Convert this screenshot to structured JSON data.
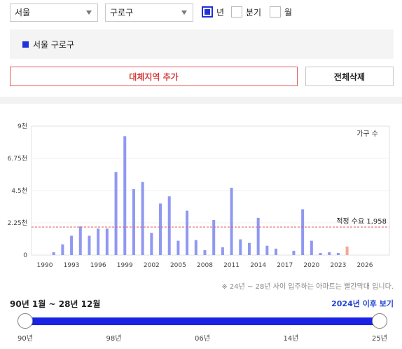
{
  "filters": {
    "city": "서울",
    "district": "구로구",
    "period_options": [
      {
        "label": "년",
        "checked": true
      },
      {
        "label": "분기",
        "checked": false
      },
      {
        "label": "월",
        "checked": false
      }
    ]
  },
  "legend": {
    "label": "서울 구로구",
    "color": "#1f35d8"
  },
  "buttons": {
    "add_region": "대체지역 추가",
    "delete_all": "전체삭제"
  },
  "chart_data": {
    "type": "bar",
    "title": "",
    "xlabel": "",
    "ylabel": "",
    "unit_label": "가구 수",
    "ylim": [
      0,
      9000
    ],
    "y_ticks": [
      "0",
      "2.25천",
      "4.5천",
      "6.75천",
      "9천"
    ],
    "x_ticks": [
      "1990",
      "1993",
      "1996",
      "1999",
      "2002",
      "2005",
      "2008",
      "2011",
      "2014",
      "2017",
      "2020",
      "2023",
      "2026"
    ],
    "reference_line": {
      "label": "적정 수요 1,958",
      "value": 1958,
      "color": "#e05a5a"
    },
    "series": [
      {
        "color": "#8f98f2",
        "points": [
          {
            "x": 1991,
            "y": 200
          },
          {
            "x": 1992,
            "y": 750
          },
          {
            "x": 1993,
            "y": 1350
          },
          {
            "x": 1994,
            "y": 2000
          },
          {
            "x": 1995,
            "y": 1350
          },
          {
            "x": 1996,
            "y": 1850
          },
          {
            "x": 1997,
            "y": 1850
          },
          {
            "x": 1998,
            "y": 5800
          },
          {
            "x": 1999,
            "y": 8300
          },
          {
            "x": 2000,
            "y": 4600
          },
          {
            "x": 2001,
            "y": 5100
          },
          {
            "x": 2002,
            "y": 1550
          },
          {
            "x": 2003,
            "y": 3600
          },
          {
            "x": 2004,
            "y": 4100
          },
          {
            "x": 2005,
            "y": 1000
          },
          {
            "x": 2006,
            "y": 3100
          },
          {
            "x": 2007,
            "y": 1050
          },
          {
            "x": 2008,
            "y": 350
          },
          {
            "x": 2009,
            "y": 2450
          },
          {
            "x": 2010,
            "y": 550
          },
          {
            "x": 2011,
            "y": 4700
          },
          {
            "x": 2012,
            "y": 1100
          },
          {
            "x": 2013,
            "y": 850
          },
          {
            "x": 2014,
            "y": 2600
          },
          {
            "x": 2015,
            "y": 650
          },
          {
            "x": 2016,
            "y": 450
          },
          {
            "x": 2018,
            "y": 300
          },
          {
            "x": 2019,
            "y": 3200
          },
          {
            "x": 2020,
            "y": 1000
          },
          {
            "x": 2021,
            "y": 150
          },
          {
            "x": 2022,
            "y": 200
          },
          {
            "x": 2023,
            "y": 150
          }
        ]
      },
      {
        "color": "#f5a896",
        "points": [
          {
            "x": 2024,
            "y": 600
          }
        ]
      }
    ]
  },
  "note": "※ 24년 ~ 28년 사이 입주하는 아파트는 빨간막대 입니다.",
  "range": {
    "label": "90년 1월 ~ 28년 12월",
    "link": "2024년 이후 보기",
    "start_fraction": 0,
    "end_fraction": 1,
    "ticks": [
      "90년",
      "98년",
      "06년",
      "14년",
      "25년"
    ]
  }
}
